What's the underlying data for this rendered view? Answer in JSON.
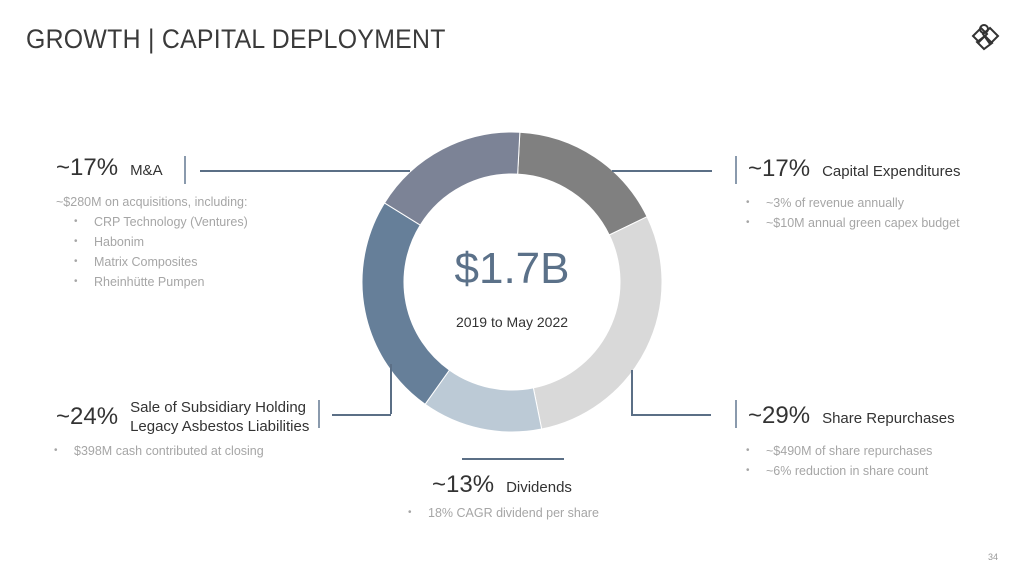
{
  "title": "GROWTH | CAPITAL DEPLOYMENT",
  "page_number": "34",
  "chart_data": {
    "type": "pie",
    "variant": "donut",
    "center_value": "$1.7B",
    "center_label": "2019 to May 2022",
    "slices": [
      {
        "name": "Capital Expenditures",
        "value": 17,
        "color": "#808080"
      },
      {
        "name": "Share Repurchases",
        "value": 29,
        "color": "#d9d9d9"
      },
      {
        "name": "Dividends",
        "value": 13,
        "color": "#bccad6"
      },
      {
        "name": "Sale of Subsidiary Holding Legacy Asbestos Liabilities",
        "value": 24,
        "color": "#667f99"
      },
      {
        "name": "M&A",
        "value": 17,
        "color": "#7c8396"
      }
    ]
  },
  "callouts": {
    "ma": {
      "pct": "~17%",
      "label": "M&A",
      "intro": "~$280M on acquisitions, including:",
      "bullets": [
        "CRP Technology (Ventures)",
        "Habonim",
        "Matrix Composites",
        "Rheinhütte Pumpen"
      ]
    },
    "capex": {
      "pct": "~17%",
      "label": "Capital Expenditures",
      "bullets": [
        "~3% of revenue annually",
        "~$10M annual green capex budget"
      ]
    },
    "sale": {
      "pct": "~24%",
      "label_1": "Sale of Subsidiary Holding",
      "label_2": "Legacy Asbestos Liabilities",
      "bullets": [
        "$398M cash contributed at closing"
      ]
    },
    "repurchases": {
      "pct": "~29%",
      "label": "Share Repurchases",
      "bullets": [
        "~$490M of share repurchases",
        "~6% reduction in share count"
      ]
    },
    "dividends": {
      "pct": "~13%",
      "label": "Dividends",
      "bullets": [
        "18% CAGR dividend per share"
      ]
    }
  }
}
